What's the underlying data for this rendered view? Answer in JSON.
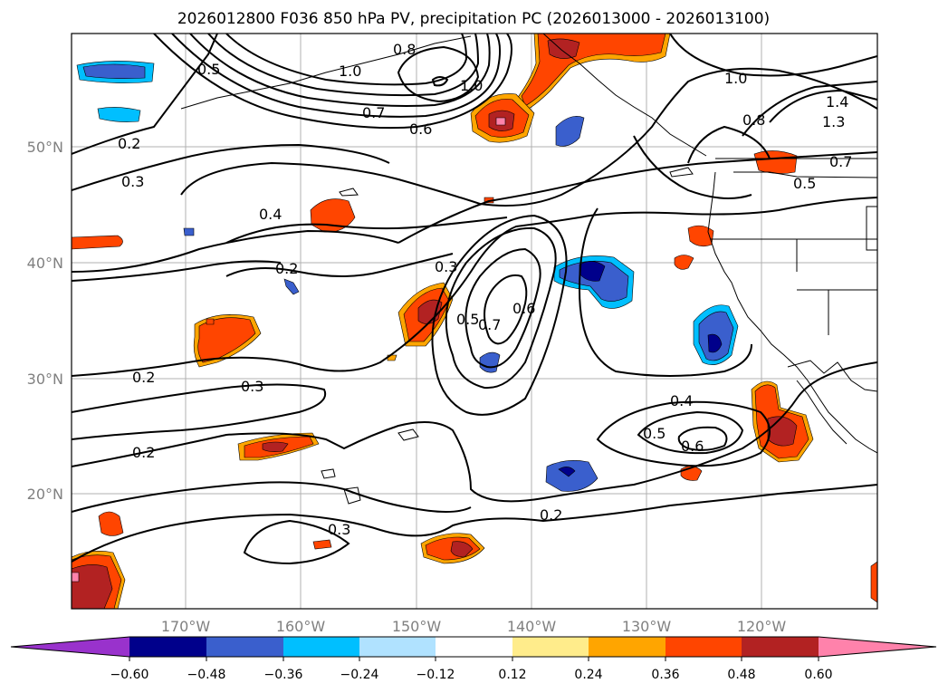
{
  "title": "2026012800 F036 850 hPa PV, precipitation PC (2026013000 - 2026013100)",
  "lat_labels": [
    "50°N",
    "40°N",
    "30°N",
    "20°N"
  ],
  "lon_labels": [
    "170°W",
    "160°W",
    "150°W",
    "140°W",
    "130°W",
    "120°W"
  ],
  "colorbar": {
    "ticks": [
      "−0.60",
      "−0.48",
      "−0.36",
      "−0.24",
      "−0.12",
      "0.12",
      "0.24",
      "0.36",
      "0.48",
      "0.60"
    ],
    "colors": [
      "#9932cc",
      "#00008b",
      "#3a5fcd",
      "#00bfff",
      "#b0e2ff",
      "#ffffff",
      "#ffec8b",
      "#ffa500",
      "#ff4500",
      "#b22222",
      "#ff82ab"
    ]
  },
  "contour_labels": [
    "0.5",
    "0.8",
    "1.0",
    "0.7",
    "0.6",
    "1.0",
    "0.2",
    "0.3",
    "0.4",
    "0.2",
    "0.3",
    "0.5",
    "0.7",
    "0.6",
    "0.2",
    "0.3",
    "0.2",
    "0.4",
    "0.5",
    "0.6",
    "0.2",
    "0.3",
    "1.0",
    "1.4",
    "1.3",
    "0.8",
    "0.5",
    "0.7"
  ]
}
